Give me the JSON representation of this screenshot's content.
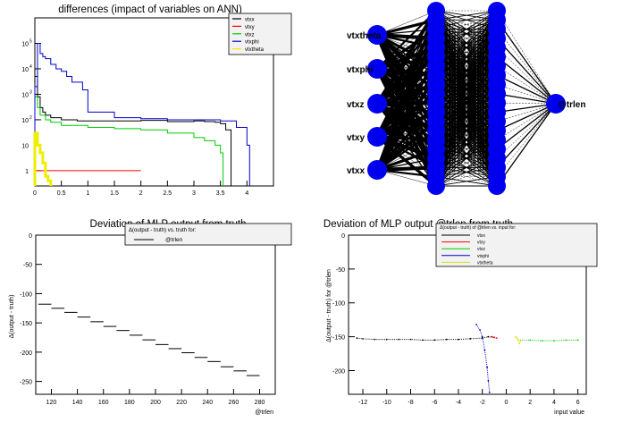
{
  "chart_data": [
    {
      "type": "line",
      "title": "differences (impact of variables on ANN)",
      "xlabel": "",
      "ylabel": "",
      "xlim": [
        0,
        4.5
      ],
      "ylim_log10": [
        -0.6,
        6.0
      ],
      "log_y": true,
      "grid": false,
      "legend_position": "top-right",
      "x_ticks": [
        "0",
        "0.5",
        "1",
        "1.5",
        "2",
        "2.5",
        "3",
        "3.5",
        "4"
      ],
      "x_tick_values": [
        0,
        0.5,
        1,
        1.5,
        2,
        2.5,
        3,
        3.5,
        4
      ],
      "y_ticks": [
        "1",
        "10",
        "10",
        "10",
        "10",
        "10"
      ],
      "y_tick_exponents": [
        "",
        "",
        "2",
        "3",
        "4",
        "5"
      ],
      "y_tick_log10": [
        0,
        1,
        2,
        3,
        4,
        5
      ],
      "series": [
        {
          "name": "vtxx",
          "color": "#000000",
          "x": [
            0.0,
            0.05,
            0.1,
            0.15,
            0.2,
            0.3,
            0.5,
            0.8,
            1.0,
            1.5,
            2.0,
            2.5,
            3.0,
            3.2,
            3.4,
            3.5,
            3.6,
            3.7
          ],
          "y": [
            5000,
            800,
            300,
            200,
            150,
            120,
            100,
            90,
            90,
            90,
            95,
            85,
            90,
            85,
            80,
            70,
            40,
            0
          ]
        },
        {
          "name": "vtxy",
          "color": "#ff0000",
          "x": [
            0.0,
            0.05,
            0.1,
            0.2,
            0.3,
            0.5,
            1.0,
            1.5,
            2.0
          ],
          "y": [
            1,
            1,
            1,
            1,
            1,
            1,
            1,
            1,
            1
          ]
        },
        {
          "name": "vtxz",
          "color": "#00cc00",
          "x": [
            0.0,
            0.05,
            0.1,
            0.2,
            0.3,
            0.5,
            1.0,
            1.5,
            2.0,
            2.5,
            3.0,
            3.2,
            3.4,
            3.5,
            3.55
          ],
          "y": [
            800,
            300,
            150,
            100,
            80,
            60,
            50,
            45,
            40,
            30,
            20,
            15,
            10,
            5,
            0
          ]
        },
        {
          "name": "vtxphi",
          "color": "#0000cc",
          "x": [
            0.0,
            0.05,
            0.1,
            0.15,
            0.2,
            0.3,
            0.4,
            0.5,
            0.6,
            0.7,
            0.8,
            0.9,
            1.0,
            1.5,
            2.0,
            2.5,
            3.0,
            3.5,
            3.8,
            4.0,
            4.05
          ],
          "y": [
            2000,
            100000,
            40000,
            30000,
            25000,
            15000,
            10000,
            8000,
            5000,
            3000,
            3000,
            1500,
            200,
            120,
            110,
            100,
            100,
            90,
            50,
            10,
            0
          ]
        },
        {
          "name": "vtxtheta",
          "color": "#eeee00",
          "x": [
            0.0,
            0.05,
            0.1,
            0.15,
            0.2,
            0.25,
            0.3
          ],
          "y": [
            30,
            10,
            5,
            2,
            0.6,
            0.4,
            0
          ]
        }
      ]
    },
    {
      "type": "diagram",
      "title": "",
      "input_labels": [
        "vtxtheta",
        "vtxphi",
        "vtxz",
        "vtxy",
        "vtxx"
      ],
      "hidden_layer_1_nodes": 20,
      "hidden_layer_2_nodes": 20,
      "output_labels": [
        "@trlen"
      ]
    },
    {
      "type": "scatter",
      "title": "Deviation of MLP output from truth",
      "xlabel": "@trlen",
      "ylabel": "Δ(output - truth)",
      "xlim": [
        108,
        292
      ],
      "ylim": [
        -272,
        0
      ],
      "legend_title": "Δ(output - truth) vs. truth for:",
      "legend_entries": [
        "@trlen"
      ],
      "x_ticks": [
        "120",
        "140",
        "160",
        "180",
        "200",
        "220",
        "240",
        "260",
        "280"
      ],
      "x_tick_values": [
        120,
        140,
        160,
        180,
        200,
        220,
        240,
        260,
        280
      ],
      "y_ticks": [
        "0",
        "-50",
        "-100",
        "-150",
        "-200",
        "-250"
      ],
      "y_tick_values": [
        0,
        -50,
        -100,
        -150,
        -200,
        -250
      ],
      "x": [
        115,
        125,
        135,
        145,
        155,
        165,
        175,
        185,
        195,
        205,
        215,
        225,
        235,
        245,
        255,
        265,
        275
      ],
      "y": [
        -118,
        -125,
        -132,
        -140,
        -148,
        -156,
        -163,
        -171,
        -179,
        -187,
        -194,
        -201,
        -209,
        -216,
        -225,
        -232,
        -240
      ],
      "x_error": 5
    },
    {
      "type": "scatter",
      "title": "Deviation of MLP output @trlen from truth",
      "xlabel": "input value",
      "ylabel": "Δ(output - truth) for @trlen",
      "xlim": [
        -13.2,
        6.7
      ],
      "ylim": [
        -235,
        0
      ],
      "legend_title": "Δ(output - truth) of @trlen vs. input for:",
      "legend_position": "top-right",
      "x_ticks": [
        "-12",
        "-10",
        "-8",
        "-6",
        "-4",
        "-2",
        "0",
        "2",
        "4",
        "6"
      ],
      "x_tick_values": [
        -12,
        -10,
        -8,
        -6,
        -4,
        -2,
        0,
        2,
        4,
        6
      ],
      "y_ticks": [
        "0",
        "-50",
        "-100",
        "-150",
        "-200"
      ],
      "y_tick_values": [
        0,
        -50,
        -100,
        -150,
        -200
      ],
      "series": [
        {
          "name": "vtxx",
          "color": "#000000",
          "x": [
            -12.5,
            -12,
            -11,
            -10,
            -9,
            -8,
            -7,
            -6,
            -5,
            -4,
            -3,
            -2,
            -1.5,
            -1
          ],
          "y": [
            -152,
            -153,
            -154,
            -154,
            -154,
            -154,
            -155,
            -155,
            -154,
            -154,
            -153,
            -152,
            -150,
            -151
          ]
        },
        {
          "name": "vtxy",
          "color": "#ff0000",
          "x": [
            -1.2,
            -1,
            -0.8
          ],
          "y": [
            -150,
            -151,
            -152
          ]
        },
        {
          "name": "vtxz",
          "color": "#00cc00",
          "x": [
            1,
            2,
            3,
            4,
            5,
            6
          ],
          "y": [
            -155,
            -155,
            -156,
            -156,
            -155,
            -155
          ]
        },
        {
          "name": "vtxphi",
          "color": "#0000cc",
          "x": [
            -2.5,
            -2.2,
            -2.0,
            -1.8,
            -1.6,
            -1.5,
            -1.4
          ],
          "y": [
            -132,
            -140,
            -150,
            -170,
            -195,
            -215,
            -232
          ]
        },
        {
          "name": "vtxtheta",
          "color": "#dddd00",
          "x": [
            0.8,
            0.9,
            1.0,
            1.1,
            1.2
          ],
          "y": [
            -150,
            -152,
            -155,
            -160,
            -156
          ]
        }
      ]
    }
  ]
}
